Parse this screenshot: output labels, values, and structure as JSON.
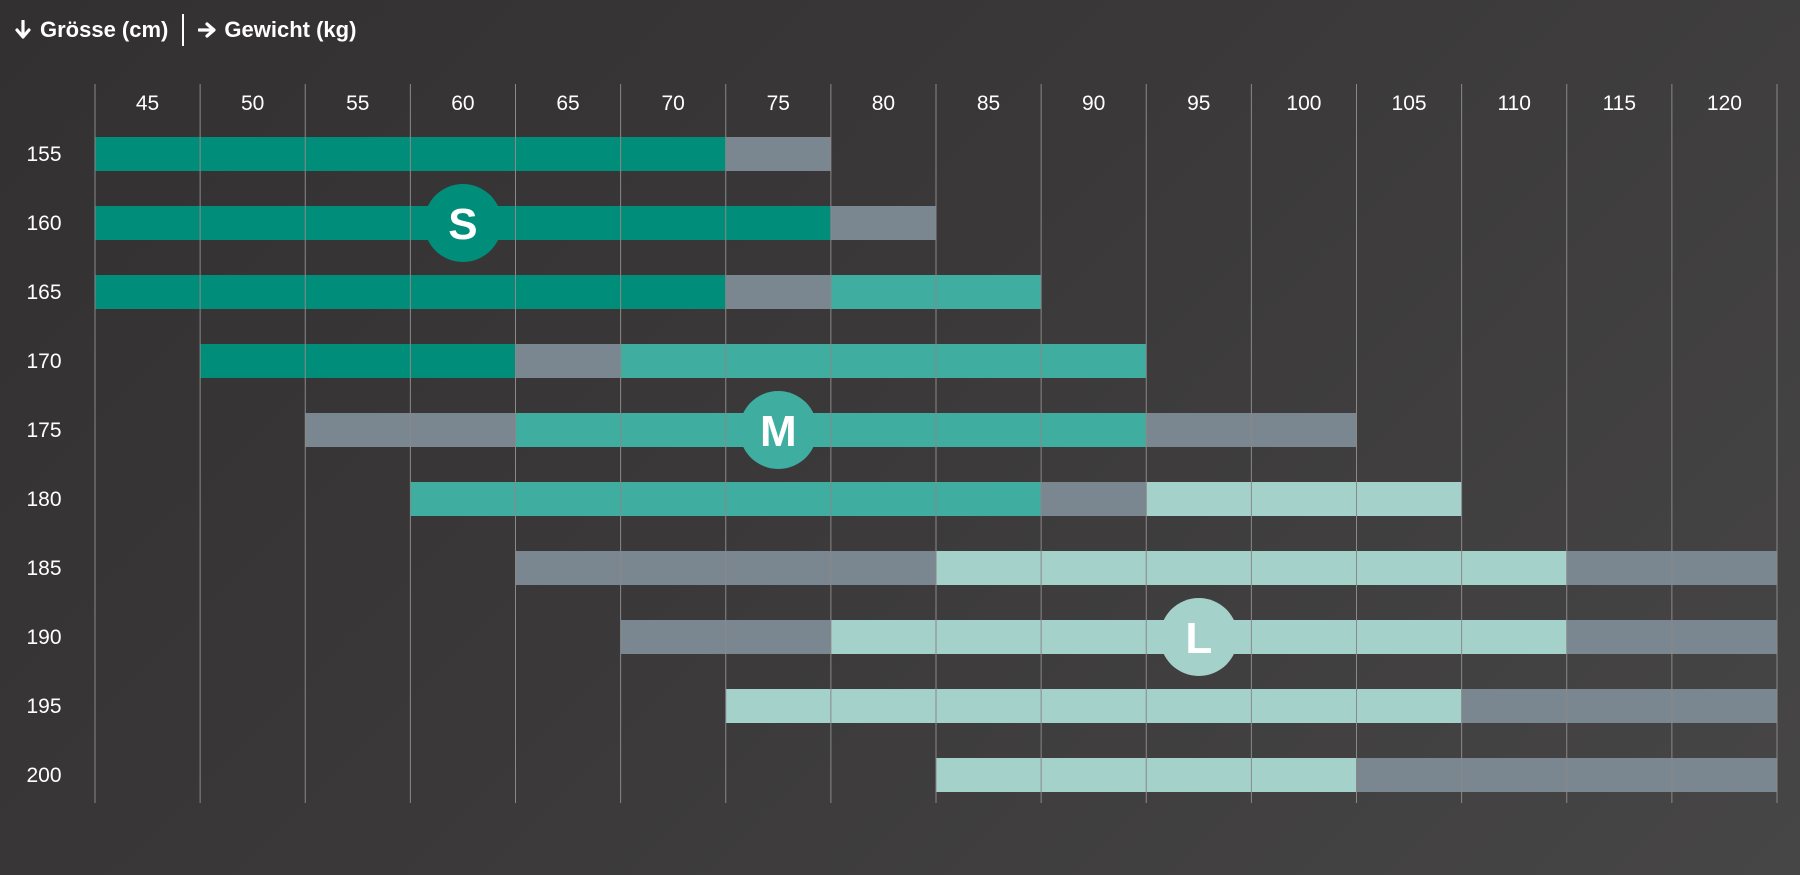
{
  "header": {
    "rows_label": "Grösse (cm)",
    "cols_label": "Gewicht (kg)",
    "rows_icon": "arrow-down-icon",
    "cols_icon": "arrow-right-icon"
  },
  "colors": {
    "S": "#008e7a",
    "M": "#3fada0",
    "L": "#a4d1ca",
    "overlap": "#7b8790",
    "grid": "#8a8888",
    "text": "#ffffff"
  },
  "chart_data": {
    "type": "table",
    "x_ticks": [
      45,
      50,
      55,
      60,
      65,
      70,
      75,
      80,
      85,
      90,
      95,
      100,
      105,
      110,
      115,
      120
    ],
    "x_range": [
      42.5,
      122.5
    ],
    "y_ticks": [
      155,
      160,
      165,
      170,
      175,
      180,
      185,
      190,
      195,
      200
    ],
    "rows": [
      {
        "height": 155,
        "segments": [
          {
            "from": 42.5,
            "to": 72.5,
            "size": "S"
          },
          {
            "from": 72.5,
            "to": 77.5,
            "size": "overlap"
          }
        ]
      },
      {
        "height": 160,
        "segments": [
          {
            "from": 42.5,
            "to": 77.5,
            "size": "S"
          },
          {
            "from": 77.5,
            "to": 82.5,
            "size": "overlap"
          }
        ]
      },
      {
        "height": 165,
        "segments": [
          {
            "from": 42.5,
            "to": 72.5,
            "size": "S"
          },
          {
            "from": 72.5,
            "to": 77.5,
            "size": "overlap"
          },
          {
            "from": 77.5,
            "to": 87.5,
            "size": "M"
          }
        ]
      },
      {
        "height": 170,
        "segments": [
          {
            "from": 47.5,
            "to": 62.5,
            "size": "S"
          },
          {
            "from": 62.5,
            "to": 67.5,
            "size": "overlap"
          },
          {
            "from": 67.5,
            "to": 92.5,
            "size": "M"
          }
        ]
      },
      {
        "height": 175,
        "segments": [
          {
            "from": 52.5,
            "to": 62.5,
            "size": "overlap"
          },
          {
            "from": 62.5,
            "to": 92.5,
            "size": "M"
          },
          {
            "from": 92.5,
            "to": 102.5,
            "size": "overlap"
          }
        ]
      },
      {
        "height": 180,
        "segments": [
          {
            "from": 57.5,
            "to": 87.5,
            "size": "M"
          },
          {
            "from": 87.5,
            "to": 92.5,
            "size": "overlap"
          },
          {
            "from": 92.5,
            "to": 107.5,
            "size": "L"
          }
        ]
      },
      {
        "height": 185,
        "segments": [
          {
            "from": 62.5,
            "to": 82.5,
            "size": "overlap"
          },
          {
            "from": 82.5,
            "to": 112.5,
            "size": "L"
          },
          {
            "from": 112.5,
            "to": 122.5,
            "size": "overlap"
          }
        ]
      },
      {
        "height": 190,
        "segments": [
          {
            "from": 67.5,
            "to": 77.5,
            "size": "overlap"
          },
          {
            "from": 77.5,
            "to": 112.5,
            "size": "L"
          },
          {
            "from": 112.5,
            "to": 122.5,
            "size": "overlap"
          }
        ]
      },
      {
        "height": 195,
        "segments": [
          {
            "from": 72.5,
            "to": 107.5,
            "size": "L"
          },
          {
            "from": 107.5,
            "to": 122.5,
            "size": "overlap"
          }
        ]
      },
      {
        "height": 200,
        "segments": [
          {
            "from": 82.5,
            "to": 102.5,
            "size": "L"
          },
          {
            "from": 102.5,
            "to": 122.5,
            "size": "overlap"
          }
        ]
      }
    ],
    "badges": [
      {
        "label": "S",
        "weight": 60,
        "height": 160
      },
      {
        "label": "M",
        "weight": 75,
        "height": 175
      },
      {
        "label": "L",
        "weight": 95,
        "height": 190
      }
    ]
  }
}
